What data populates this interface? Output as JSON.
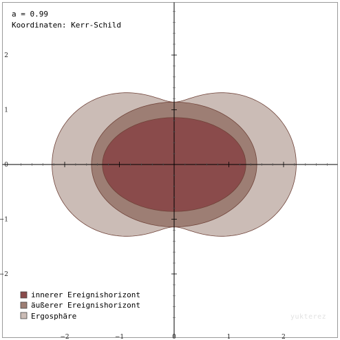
{
  "info": {
    "param_line": "a = 0.99",
    "coord_line": "Koordinaten: Kerr-Schild"
  },
  "axes": {
    "x_ticks": [
      {
        "value": -2,
        "label": "−2"
      },
      {
        "value": -1,
        "label": "−1"
      },
      {
        "value": 0,
        "label": "0"
      },
      {
        "value": 1,
        "label": "1"
      },
      {
        "value": 2,
        "label": "2"
      }
    ],
    "y_ticks": [
      {
        "value": 2,
        "label": "2"
      },
      {
        "value": 1,
        "label": "1"
      },
      {
        "value": 0,
        "label": "0"
      },
      {
        "value": -1,
        "label": "−1"
      },
      {
        "value": -2,
        "label": "−2"
      }
    ],
    "x_range": [
      -3.1,
      3.1
    ],
    "y_range": [
      -3.2,
      3.0
    ]
  },
  "regions": {
    "spin_a": 0.99,
    "ergosphere": {
      "name": "Ergosphäre",
      "color": "#cbbcb6",
      "stroke": "#6f4238"
    },
    "outer_horizon": {
      "name": "äußerer Ereignishorizont",
      "color": "#9d7e74",
      "stroke": "#6f4238"
    },
    "inner_horizon": {
      "name": "innerer Ereignishorizont",
      "color": "#8a4b4b",
      "stroke": "#6f4238"
    }
  },
  "legend": {
    "items": [
      {
        "label": "innerer Ereignishorizont",
        "color": "#8a4b4b"
      },
      {
        "label": "äußerer Ereignishorizont",
        "color": "#9d7e74"
      },
      {
        "label": "Ergosphäre",
        "color": "#cbbcb6"
      }
    ]
  },
  "watermark": "yukterez"
}
